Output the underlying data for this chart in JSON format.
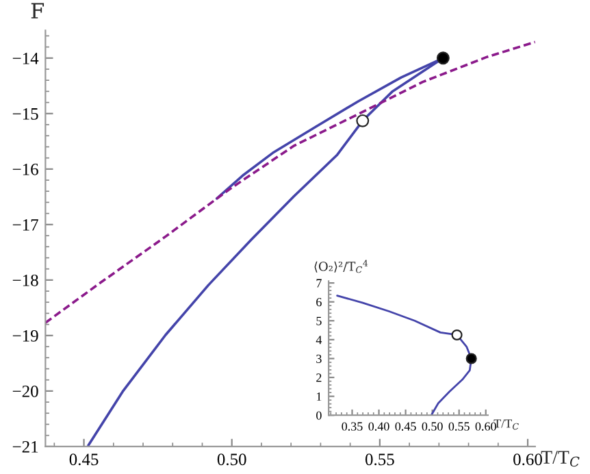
{
  "chart_data": [
    {
      "type": "line",
      "xlabel": "T/T$_{C}$",
      "ylabel": "F",
      "xlim": [
        0.437,
        0.6025
      ],
      "ylim": [
        -21,
        -13.5
      ],
      "xticks": [
        0.45,
        {
          "value": 0.5,
          "label": "0.50"
        },
        0.55,
        {
          "value": 0.6,
          "label": "0.60"
        }
      ],
      "yticks": [
        -21,
        -20,
        -19,
        -18,
        -17,
        -16,
        -15,
        -14
      ],
      "grid": false,
      "legend": false,
      "series": [
        {
          "color": "#4444aa",
          "x": [
            0.4515,
            0.4631,
            0.4776,
            0.4921,
            0.5066,
            0.521,
            0.5355,
            0.5442,
            0.5543,
            0.5714
          ],
          "values": [
            -20.98,
            -20.01,
            -18.99,
            -18.09,
            -17.27,
            -16.49,
            -15.75,
            -15.13,
            -14.6,
            -14.0
          ]
        },
        {
          "color": "#4444aa",
          "x": [
            0.5714,
            0.5572,
            0.5427,
            0.5283,
            0.5138,
            0.5036,
            0.4949
          ],
          "values": [
            -14.0,
            -14.35,
            -14.78,
            -15.24,
            -15.71,
            -16.12,
            -16.53
          ]
        },
        {
          "color": "#8b1a8b",
          "line_style": "dashed",
          "x": [
            0.437,
            0.4558,
            0.4775,
            0.4993,
            0.521,
            0.5427,
            0.5645,
            0.5862,
            0.6025
          ],
          "values": [
            -18.77,
            -18.04,
            -17.22,
            -16.36,
            -15.58,
            -15.01,
            -14.43,
            -13.98,
            -13.71
          ]
        },
        {
          "type": "scatter",
          "marker": "circle",
          "color": "#ffffff",
          "x": [
            0.5442
          ],
          "values": [
            -15.13
          ]
        },
        {
          "type": "scatter",
          "marker": "circle",
          "color": "#000000",
          "x": [
            0.5714
          ],
          "values": [
            -14.0
          ]
        }
      ]
    },
    {
      "type": "line",
      "xlabel": "T/T$_{C}$",
      "ylabel": "⟨O₂⟩²/T$_{C}$$^{4}$",
      "xlim": [
        0.306,
        0.604
      ],
      "ylim": [
        0,
        7.1
      ],
      "xticks": [
        0.35,
        {
          "value": 0.4,
          "label": "0.40"
        },
        0.45,
        {
          "value": 0.5,
          "label": "0.50"
        },
        0.55,
        {
          "value": 0.6,
          "label": "0.60"
        }
      ],
      "yticks": [
        0,
        1,
        2,
        3,
        4,
        5,
        6,
        7
      ],
      "grid": false,
      "legend": false,
      "series": [
        {
          "color": "#4444aa",
          "x": [
            0.322,
            0.37,
            0.419,
            0.467,
            0.515,
            0.546,
            0.564,
            0.573,
            0.57,
            0.556,
            0.532,
            0.511,
            0.498
          ],
          "values": [
            6.33,
            5.95,
            5.5,
            5.0,
            4.38,
            4.25,
            3.63,
            3.0,
            2.38,
            1.88,
            1.25,
            0.63,
            0
          ]
        },
        {
          "type": "scatter",
          "marker": "circle",
          "color": "#ffffff",
          "x": [
            0.546
          ],
          "values": [
            4.25
          ]
        },
        {
          "type": "scatter",
          "marker": "circle",
          "color": "#000000",
          "x": [
            0.573
          ],
          "values": [
            3.0
          ]
        }
      ]
    }
  ]
}
